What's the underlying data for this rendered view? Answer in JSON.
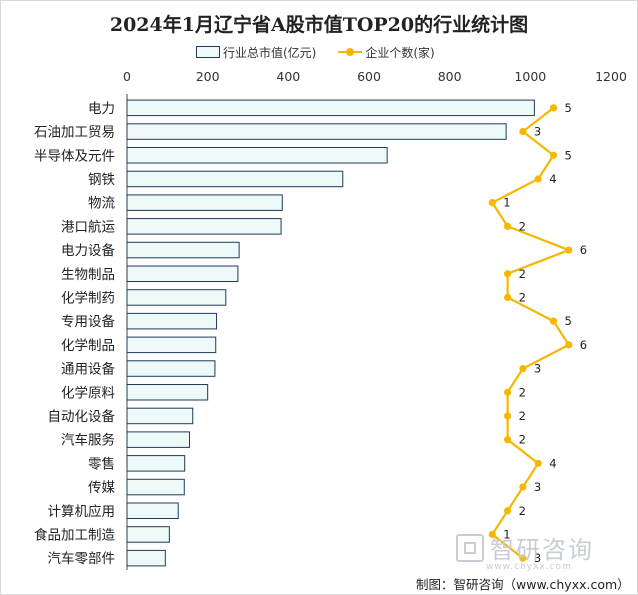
{
  "chart_data": {
    "type": "bar",
    "orientation": "horizontal",
    "title": "2024年1月辽宁省A股市值TOP20的行业统计图",
    "categories": [
      "电力",
      "石油加工贸易",
      "半导体及元件",
      "钢铁",
      "物流",
      "港口航运",
      "电力设备",
      "生物制品",
      "化学制药",
      "专用设备",
      "化学制品",
      "通用设备",
      "化学原料",
      "自动化设备",
      "汽车服务",
      "零售",
      "传媒",
      "计算机应用",
      "食品加工制造",
      "汽车零部件"
    ],
    "series": [
      {
        "name": "行业总市值(亿元)",
        "type": "bar",
        "values": [
          1010,
          940,
          645,
          535,
          385,
          382,
          278,
          275,
          245,
          222,
          220,
          218,
          200,
          163,
          155,
          143,
          142,
          127,
          105,
          95
        ]
      },
      {
        "name": "企业个数(家)",
        "type": "line",
        "values": [
          5,
          3,
          5,
          4,
          1,
          2,
          6,
          2,
          2,
          5,
          6,
          3,
          2,
          2,
          2,
          4,
          3,
          2,
          1,
          3
        ]
      }
    ],
    "xlim": [
      0,
      1200
    ],
    "xticks": [
      "0",
      "200",
      "400",
      "600",
      "800",
      "1000",
      "1200"
    ],
    "legend_position": "top",
    "grid": false,
    "colors": {
      "bar_fill": "#eefaf9",
      "bar_stroke": "#1f3a5c",
      "line": "#f5b800"
    }
  },
  "watermark": {
    "text": "智研咨询",
    "url": "www.chyxx.com"
  },
  "source": "制图：智研咨询（www.chyxx.com）"
}
